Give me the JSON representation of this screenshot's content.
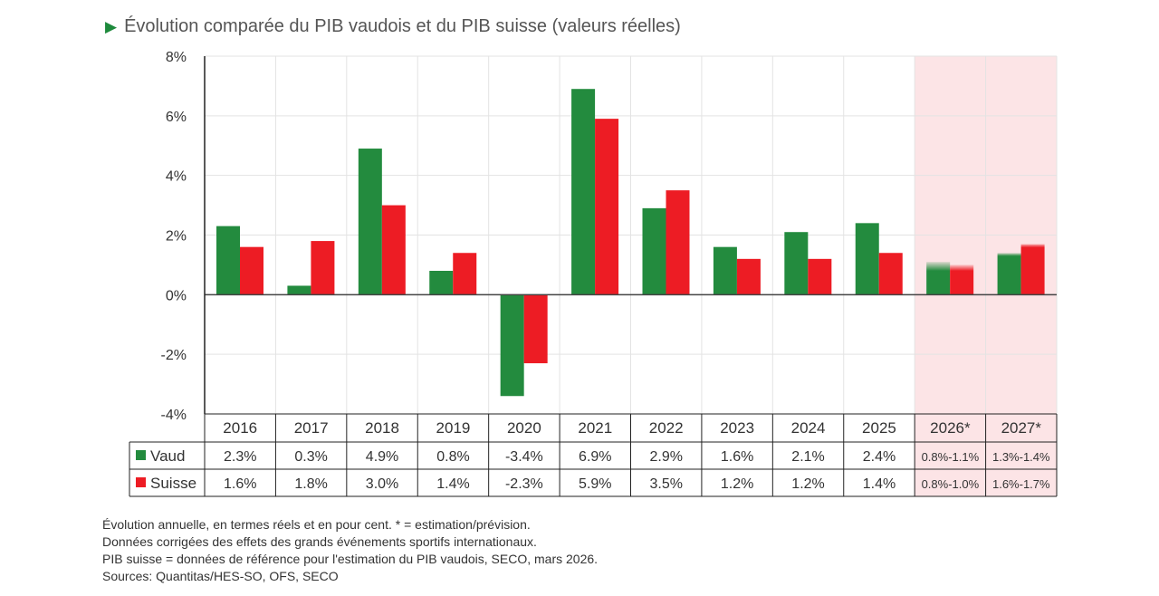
{
  "title": "Évolution comparée du PIB vaudois et du PIB suisse (valeurs réelles)",
  "colors": {
    "vaud": "#238b3e",
    "suisse": "#ed1c24",
    "forecast_bg": "#fce4e6"
  },
  "chart_data": {
    "type": "bar",
    "categories": [
      "2016",
      "2017",
      "2018",
      "2019",
      "2020",
      "2021",
      "2022",
      "2023",
      "2024",
      "2025",
      "2026*",
      "2027*"
    ],
    "ylim": [
      -4,
      8
    ],
    "yticks": [
      -4,
      -2,
      0,
      2,
      4,
      6,
      8
    ],
    "ytick_labels": [
      "-4%",
      "-2%",
      "0%",
      "2%",
      "4%",
      "6%",
      "8%"
    ],
    "forecast_from_index": 10,
    "series": [
      {
        "name": "Vaud",
        "values": [
          2.3,
          0.3,
          4.9,
          0.8,
          -3.4,
          6.9,
          2.9,
          1.6,
          2.1,
          2.4,
          [
            0.8,
            1.1
          ],
          [
            1.3,
            1.4
          ]
        ],
        "labels": [
          "2.3%",
          "0.3%",
          "4.9%",
          "0.8%",
          "-3.4%",
          "6.9%",
          "2.9%",
          "1.6%",
          "2.1%",
          "2.4%",
          "0.8%-1.1%",
          "1.3%-1.4%"
        ]
      },
      {
        "name": "Suisse",
        "values": [
          1.6,
          1.8,
          3.0,
          1.4,
          -2.3,
          5.9,
          3.5,
          1.2,
          1.2,
          1.4,
          [
            0.8,
            1.0
          ],
          [
            1.6,
            1.7
          ]
        ],
        "labels": [
          "1.6%",
          "1.8%",
          "3.0%",
          "1.4%",
          "-2.3%",
          "5.9%",
          "3.5%",
          "1.2%",
          "1.2%",
          "1.4%",
          "0.8%-1.0%",
          "1.6%-1.7%"
        ]
      }
    ]
  },
  "notes": [
    "Évolution annuelle, en termes réels et en pour cent. * = estimation/prévision.",
    "Données corrigées des effets des grands événements sportifs internationaux.",
    "PIB suisse = données de référence pour l'estimation du PIB vaudois, SECO, mars 2026.",
    "Sources: Quantitas/HES-SO, OFS, SECO"
  ]
}
